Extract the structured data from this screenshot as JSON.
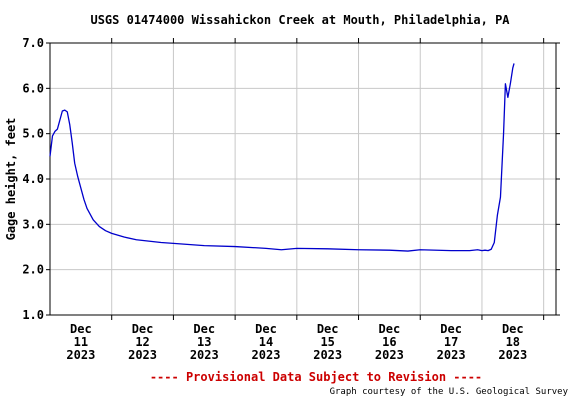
{
  "chart_data": {
    "type": "line",
    "title": "USGS 01474000 Wissahickon Creek at Mouth, Philadelphia, PA",
    "ylabel": "Gage height, feet",
    "xlabel": "",
    "ylim": [
      1.0,
      7.0
    ],
    "yticks": [
      "1.0",
      "2.0",
      "3.0",
      "4.0",
      "5.0",
      "6.0",
      "7.0"
    ],
    "xlim": [
      0,
      8.2
    ],
    "xticks": [
      {
        "pos": 0.5,
        "lines": [
          "Dec",
          "11",
          "2023"
        ]
      },
      {
        "pos": 1.5,
        "lines": [
          "Dec",
          "12",
          "2023"
        ]
      },
      {
        "pos": 2.5,
        "lines": [
          "Dec",
          "13",
          "2023"
        ]
      },
      {
        "pos": 3.5,
        "lines": [
          "Dec",
          "14",
          "2023"
        ]
      },
      {
        "pos": 4.5,
        "lines": [
          "Dec",
          "15",
          "2023"
        ]
      },
      {
        "pos": 5.5,
        "lines": [
          "Dec",
          "16",
          "2023"
        ]
      },
      {
        "pos": 6.5,
        "lines": [
          "Dec",
          "17",
          "2023"
        ]
      },
      {
        "pos": 7.5,
        "lines": [
          "Dec",
          "18",
          "2023"
        ]
      }
    ],
    "grid": true,
    "series": [
      {
        "color": "#0000cc",
        "x": [
          0.0,
          0.04,
          0.08,
          0.12,
          0.16,
          0.2,
          0.24,
          0.28,
          0.32,
          0.36,
          0.4,
          0.45,
          0.5,
          0.55,
          0.6,
          0.7,
          0.8,
          0.9,
          1.0,
          1.2,
          1.4,
          1.6,
          1.8,
          2.0,
          2.5,
          3.0,
          3.5,
          3.75,
          4.0,
          4.5,
          5.0,
          5.5,
          5.8,
          6.0,
          6.5,
          6.8,
          6.93,
          7.0,
          7.05,
          7.1,
          7.15,
          7.2,
          7.25,
          7.3,
          7.35,
          7.38,
          7.42,
          7.46,
          7.5,
          7.52
        ],
        "y": [
          4.5,
          4.95,
          5.05,
          5.1,
          5.3,
          5.5,
          5.52,
          5.48,
          5.2,
          4.8,
          4.35,
          4.05,
          3.8,
          3.55,
          3.35,
          3.1,
          2.95,
          2.86,
          2.8,
          2.72,
          2.66,
          2.63,
          2.6,
          2.58,
          2.53,
          2.51,
          2.47,
          2.44,
          2.47,
          2.46,
          2.44,
          2.43,
          2.41,
          2.44,
          2.42,
          2.42,
          2.44,
          2.42,
          2.43,
          2.42,
          2.45,
          2.6,
          3.2,
          3.6,
          5.0,
          6.1,
          5.8,
          6.1,
          6.45,
          6.55
        ]
      }
    ]
  },
  "footer": {
    "provisional": "---- Provisional Data Subject to Revision ----",
    "courtesy": "Graph courtesy of the U.S. Geological Survey"
  }
}
